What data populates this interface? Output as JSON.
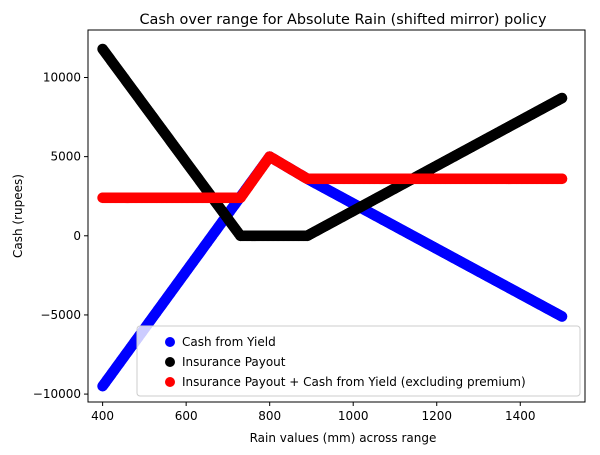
{
  "chart_data": {
    "type": "scatter",
    "title": "Cash over range for Absolute Rain (shifted mirror) policy",
    "xlabel": "Rain values (mm) across range",
    "ylabel": "Cash (rupees)",
    "xlim": [
      365,
      1555
    ],
    "ylim": [
      -10500,
      13000
    ],
    "xticks": [
      400,
      600,
      800,
      1000,
      1200,
      1400
    ],
    "yticks": [
      -10000,
      -5000,
      0,
      5000,
      10000
    ],
    "ytick_labels": [
      "−10000",
      "−5000",
      "0",
      "5000",
      "10000"
    ],
    "legend_position": "lower-right",
    "series": [
      {
        "name": "Cash from Yield",
        "color": "#0000ff",
        "points": [
          [
            400,
            -9500
          ],
          [
            800,
            5000
          ],
          [
            890,
            3600
          ],
          [
            1500,
            -5100
          ]
        ]
      },
      {
        "name": "Insurance Payout",
        "color": "#000000",
        "points": [
          [
            400,
            11800
          ],
          [
            730,
            0
          ],
          [
            890,
            0
          ],
          [
            1500,
            8700
          ]
        ]
      },
      {
        "name": "Insurance Payout + Cash from Yield (excluding premium)",
        "color": "#ff0000",
        "points": [
          [
            400,
            2400
          ],
          [
            730,
            2400
          ],
          [
            800,
            5000
          ],
          [
            890,
            3600
          ],
          [
            1500,
            3600
          ]
        ]
      }
    ]
  }
}
